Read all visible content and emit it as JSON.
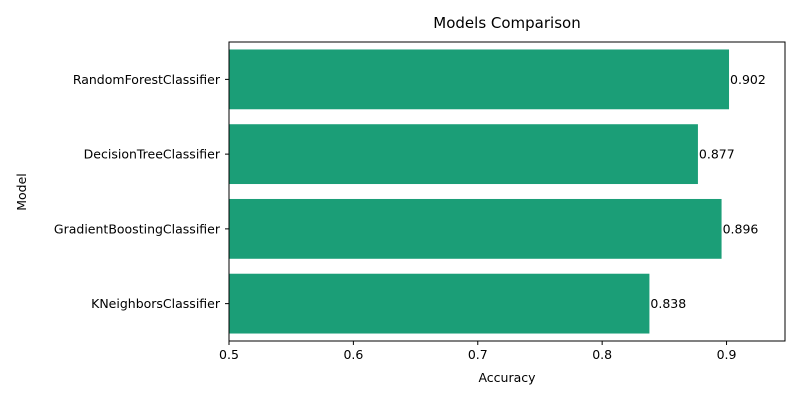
{
  "chart_data": {
    "type": "bar",
    "orientation": "horizontal",
    "title": "Models Comparison",
    "xlabel": "Accuracy",
    "ylabel": "Model",
    "xlim": [
      0.5,
      0.947
    ],
    "x_ticks": [
      0.5,
      0.6,
      0.7,
      0.8,
      0.9
    ],
    "x_tick_labels": [
      "0.5",
      "0.6",
      "0.7",
      "0.8",
      "0.9"
    ],
    "categories": [
      "RandomForestClassifier",
      "DecisionTreeClassifier",
      "GradientBoostingClassifier",
      "KNeighborsClassifier"
    ],
    "values": [
      0.902,
      0.877,
      0.896,
      0.838
    ],
    "value_labels": [
      "0.902",
      "0.877",
      "0.896",
      "0.838"
    ],
    "bar_color": "#1b9e77",
    "grid": false,
    "legend": "none"
  }
}
